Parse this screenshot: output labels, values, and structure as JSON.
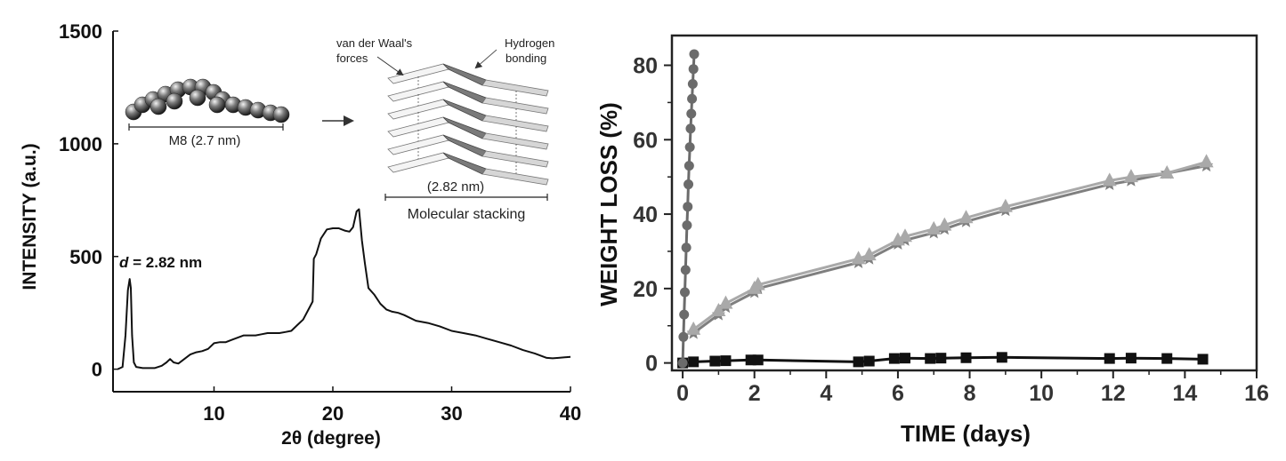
{
  "chart_data": [
    {
      "type": "line",
      "xlabel": "2θ (degree)",
      "ylabel": "INTENSITY (a.u.)",
      "xlim": [
        1.5,
        40
      ],
      "ylim": [
        -100,
        1500
      ],
      "x_ticks": [
        "10",
        "20",
        "30",
        "40"
      ],
      "y_ticks": [
        "0",
        "500",
        "1000",
        "1500"
      ],
      "annotation": {
        "italic": "d",
        "text": " = 2.82 nm"
      },
      "inset": {
        "molecule_label": "M8 (2.7 nm)",
        "vdw_label_1": "van der Waal's",
        "vdw_label_2": "forces",
        "hbond_label_1": "Hydrogen",
        "hbond_label_2": "bonding",
        "stack_size_label": "(2.82 nm)",
        "stack_label": "Molecular stacking"
      },
      "series": [
        {
          "color": "#111111",
          "x": [
            1.9,
            2.3,
            2.55,
            2.75,
            2.9,
            3.0,
            3.1,
            3.25,
            3.45,
            4.0,
            5.0,
            5.6,
            6.0,
            6.3,
            6.6,
            7.0,
            7.5,
            8.0,
            8.5,
            9.0,
            9.5,
            10.0,
            10.5,
            11.0,
            11.5,
            12.0,
            12.5,
            13.0,
            13.5,
            14.0,
            14.5,
            15.0,
            15.5,
            16.0,
            16.5,
            17.0,
            17.5,
            18.0,
            18.3,
            18.4,
            18.6,
            19.0,
            19.5,
            20.0,
            20.5,
            21.0,
            21.4,
            21.7,
            22.0,
            22.2,
            22.45,
            22.7,
            23.0,
            23.5,
            24.0,
            24.5,
            25.0,
            25.5,
            26.0,
            27.0,
            28.0,
            29.0,
            30.0,
            31.0,
            32.0,
            33.0,
            34.0,
            35.0,
            36.0,
            37.0,
            38.0,
            38.5,
            39.0,
            40.0
          ],
          "y": [
            0,
            10,
            150,
            350,
            400,
            360,
            150,
            30,
            10,
            5,
            5,
            15,
            30,
            45,
            30,
            25,
            45,
            65,
            75,
            80,
            90,
            115,
            120,
            120,
            130,
            140,
            150,
            150,
            150,
            155,
            160,
            160,
            160,
            165,
            170,
            195,
            220,
            270,
            300,
            490,
            510,
            580,
            620,
            625,
            625,
            615,
            610,
            630,
            700,
            710,
            570,
            470,
            360,
            330,
            290,
            265,
            255,
            250,
            240,
            215,
            205,
            190,
            170,
            160,
            150,
            135,
            120,
            105,
            85,
            70,
            50,
            48,
            50,
            55
          ]
        }
      ]
    },
    {
      "type": "line",
      "xlabel": "TIME (days)",
      "ylabel": "WEIGHT LOSS (%)",
      "xlim": [
        -0.3,
        16
      ],
      "ylim": [
        -2,
        88
      ],
      "x_ticks": [
        "0",
        "2",
        "4",
        "6",
        "8",
        "10",
        "12",
        "14",
        "16"
      ],
      "y_ticks": [
        "0",
        "20",
        "40",
        "60",
        "80"
      ],
      "series": [
        {
          "marker": "circle",
          "color": "#6b6b6b",
          "x": [
            0,
            0.02,
            0.04,
            0.06,
            0.08,
            0.1,
            0.12,
            0.14,
            0.16,
            0.18,
            0.2,
            0.22,
            0.24,
            0.26,
            0.28,
            0.3,
            0.32
          ],
          "y": [
            0,
            7,
            13,
            19,
            25,
            31,
            37,
            42,
            48,
            53,
            58,
            63,
            67,
            71,
            75,
            79,
            83
          ]
        },
        {
          "marker": "square",
          "color": "#111111",
          "x": [
            0,
            0.3,
            0.9,
            1.2,
            1.9,
            2.1,
            4.9,
            5.2,
            5.9,
            6.2,
            6.9,
            7.2,
            7.9,
            8.9,
            11.9,
            12.5,
            13.5,
            14.5
          ],
          "y": [
            0,
            0.3,
            0.5,
            0.6,
            0.8,
            0.8,
            0.3,
            0.5,
            1.2,
            1.3,
            1.2,
            1.3,
            1.4,
            1.5,
            1.2,
            1.3,
            1.2,
            1.0
          ]
        },
        {
          "marker": "triangle",
          "color": "#a9a9a9",
          "x": [
            0.3,
            1.0,
            1.2,
            2.0,
            2.1,
            4.9,
            5.2,
            6.0,
            6.2,
            7.0,
            7.3,
            7.9,
            9.0,
            11.9,
            12.5,
            13.5,
            14.6
          ],
          "y": [
            9,
            14,
            16,
            20,
            21,
            28,
            29,
            33,
            34,
            36,
            37,
            39,
            42,
            49,
            50,
            51,
            54
          ]
        },
        {
          "marker": "star",
          "color": "#7f7f7f",
          "x": [
            0.3,
            1.0,
            1.2,
            2.0,
            2.1,
            4.9,
            5.2,
            6.0,
            6.2,
            7.0,
            7.3,
            7.9,
            9.0,
            11.9,
            12.5,
            13.5,
            14.6
          ],
          "y": [
            8,
            13,
            15,
            19,
            20,
            27,
            28,
            32,
            33,
            35,
            36,
            38,
            41,
            48,
            49,
            51,
            53
          ]
        }
      ]
    }
  ]
}
